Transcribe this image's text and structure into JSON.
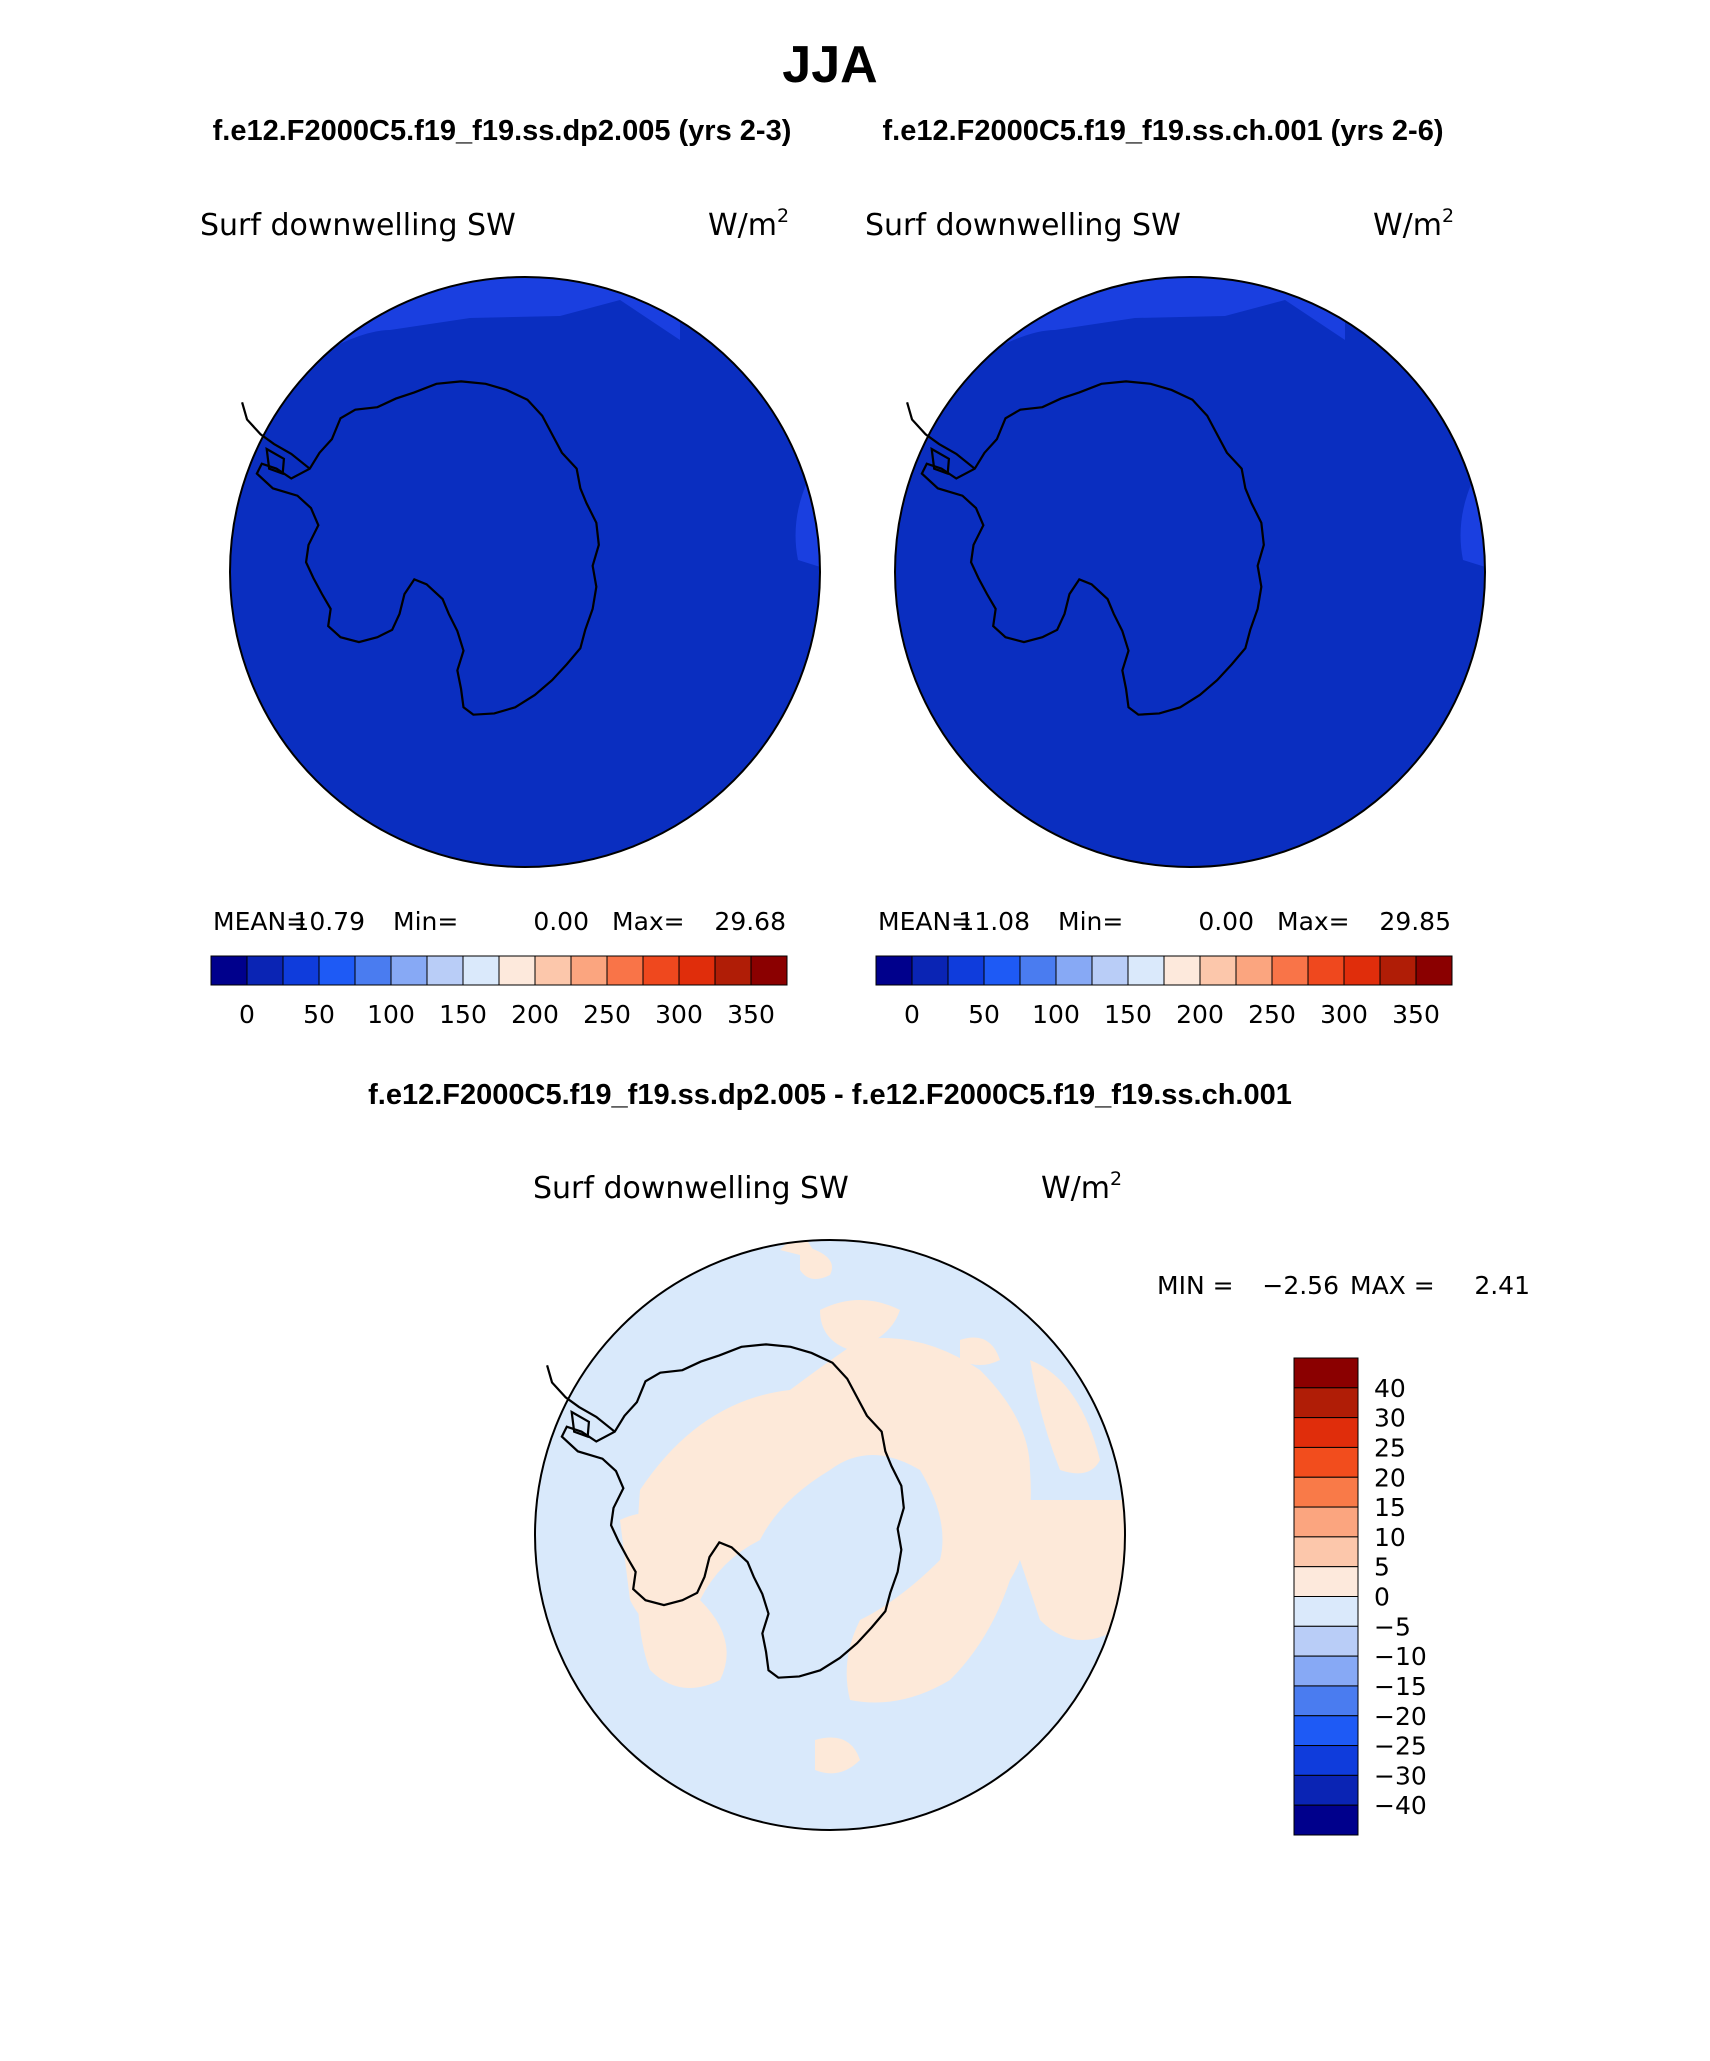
{
  "title": "JJA",
  "subtitle_left": "f.e12.F2000C5.f19_f19.ss.dp2.005 (yrs 2-3)",
  "subtitle_right": "f.e12.F2000C5.f19_f19.ss.ch.001 (yrs 2-6)",
  "diff_title": "f.e12.F2000C5.f19_f19.ss.dp2.005 - f.e12.F2000C5.f19_f19.ss.ch.001",
  "variable": "Surf downwelling SW",
  "units_base": "W/m",
  "units_exp": "2",
  "panels": [
    {
      "stats": {
        "mean_label": "MEAN=",
        "mean": "10.79",
        "min_label": "Min=",
        "min": "0.00",
        "max_label": "Max=",
        "max": "29.68"
      },
      "field_color": "#0a2ec0",
      "edge_color": "#1a3fe0"
    },
    {
      "stats": {
        "mean_label": "MEAN=",
        "mean": "11.08",
        "min_label": "Min=",
        "min": "0.00",
        "max_label": "Max=",
        "max": "29.85"
      },
      "field_color": "#0a2ec0",
      "edge_color": "#1a3fe0"
    }
  ],
  "colorbar": {
    "ticks": [
      "0",
      "50",
      "100",
      "150",
      "200",
      "250",
      "300",
      "350"
    ],
    "colors": [
      "#00008c",
      "#0a24b4",
      "#0f3cdc",
      "#1e5af5",
      "#4a7cf0",
      "#87a9f5",
      "#b9cdf7",
      "#dae9fb",
      "#fde9dc",
      "#fcc7ab",
      "#fba57f",
      "#f97448",
      "#ef481e",
      "#e02d0b",
      "#b01d06",
      "#8b0000"
    ]
  },
  "diff": {
    "stats": {
      "min_label": "MIN =",
      "min": "−2.56",
      "max_label": "MAX =",
      "max": "2.41"
    },
    "pos_color": "#fde9d9",
    "neg_color": "#d9e9fb",
    "legend_labels": [
      "40",
      "30",
      "25",
      "20",
      "15",
      "10",
      "5",
      "0",
      "−5",
      "−10",
      "−15",
      "−20",
      "−25",
      "−30",
      "−40"
    ],
    "legend_colors": [
      "#8b0000",
      "#b01d06",
      "#e02d0b",
      "#f24d1d",
      "#f97a48",
      "#fba57f",
      "#fcc7ab",
      "#fde9dc",
      "#dae9fb",
      "#b9cdf7",
      "#87a9f5",
      "#4a7cf0",
      "#1e5af5",
      "#0f3cdc",
      "#0a24b4",
      "#00008c"
    ]
  }
}
